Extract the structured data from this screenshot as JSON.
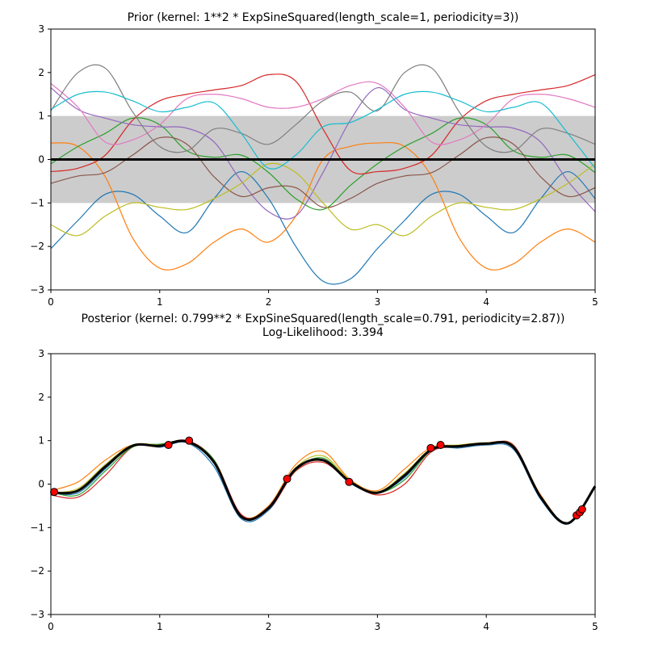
{
  "chart_data": [
    {
      "type": "line",
      "title": "Prior (kernel:  1**2 * ExpSineSquared(length_scale=1, periodicity=3))",
      "xlim": [
        0,
        5
      ],
      "ylim": [
        -3,
        3
      ],
      "xticks": [
        0,
        1,
        2,
        3,
        4,
        5
      ],
      "yticks": [
        {
          "value": -3,
          "label": "−3"
        },
        {
          "value": -2,
          "label": "−2"
        },
        {
          "value": -1,
          "label": "−1"
        },
        0,
        1,
        2,
        3
      ],
      "x": [
        0,
        0.25,
        0.5,
        0.75,
        1,
        1.25,
        1.5,
        1.75,
        2,
        2.25,
        2.5,
        2.75,
        3,
        3.25,
        3.5,
        3.75,
        4,
        4.25,
        4.5,
        4.75,
        5
      ],
      "fill_between": {
        "color": "#cccccc",
        "lower": [
          -1,
          -1,
          -1,
          -1,
          -1,
          -1,
          -1,
          -1,
          -1,
          -1,
          -1,
          -1,
          -1,
          -1,
          -1,
          -1,
          -1,
          -1,
          -1,
          -1,
          -1
        ],
        "upper": [
          1,
          1,
          1,
          1,
          1,
          1,
          1,
          1,
          1,
          1,
          1,
          1,
          1,
          1,
          1,
          1,
          1,
          1,
          1,
          1,
          1
        ]
      },
      "series": [
        {
          "color": "#1f77b4",
          "values": [
            -2.05,
            -1.4,
            -0.8,
            -0.8,
            -1.3,
            -1.68,
            -0.9,
            -0.28,
            -0.9,
            -2.0,
            -2.8,
            -2.75,
            -2.05,
            -1.4,
            -0.8,
            -0.8,
            -1.3,
            -1.68,
            -0.9,
            -0.28,
            -0.9
          ]
        },
        {
          "color": "#ff7f0e",
          "values": [
            0.38,
            0.3,
            -0.4,
            -1.8,
            -2.5,
            -2.4,
            -1.9,
            -1.6,
            -1.9,
            -1.3,
            0.0,
            0.3,
            0.38,
            0.3,
            -0.4,
            -1.8,
            -2.5,
            -2.4,
            -1.9,
            -1.6,
            -1.9
          ]
        },
        {
          "color": "#2ca02c",
          "values": [
            -0.1,
            0.3,
            0.6,
            0.95,
            0.8,
            0.2,
            0.05,
            0.1,
            -0.3,
            -0.9,
            -1.15,
            -0.6,
            -0.1,
            0.3,
            0.6,
            0.95,
            0.8,
            0.2,
            0.05,
            0.1,
            -0.3
          ]
        },
        {
          "color": "#d62728",
          "values": [
            -0.28,
            -0.2,
            0.1,
            0.9,
            1.35,
            1.5,
            1.6,
            1.7,
            1.95,
            1.8,
            0.7,
            -0.25,
            -0.28,
            -0.2,
            0.1,
            0.9,
            1.35,
            1.5,
            1.6,
            1.7,
            1.95
          ]
        },
        {
          "color": "#9467bd",
          "values": [
            1.65,
            1.15,
            0.95,
            0.8,
            0.75,
            0.72,
            0.4,
            -0.5,
            -1.2,
            -1.3,
            -0.3,
            0.9,
            1.65,
            1.15,
            0.95,
            0.8,
            0.75,
            0.72,
            0.4,
            -0.5,
            -1.2
          ]
        },
        {
          "color": "#8c564b",
          "values": [
            -0.55,
            -0.38,
            -0.3,
            0.1,
            0.5,
            0.35,
            -0.4,
            -0.85,
            -0.65,
            -0.65,
            -1.1,
            -0.9,
            -0.55,
            -0.38,
            -0.3,
            0.1,
            0.5,
            0.35,
            -0.4,
            -0.85,
            -0.65
          ]
        },
        {
          "color": "#e377c2",
          "values": [
            1.75,
            1.2,
            0.4,
            0.45,
            0.8,
            1.4,
            1.5,
            1.4,
            1.2,
            1.2,
            1.4,
            1.7,
            1.75,
            1.2,
            0.4,
            0.45,
            0.8,
            1.4,
            1.5,
            1.4,
            1.2
          ]
        },
        {
          "color": "#7f7f7f",
          "values": [
            1.12,
            2.0,
            2.1,
            1.1,
            0.3,
            0.2,
            0.7,
            0.6,
            0.35,
            0.8,
            1.35,
            1.55,
            1.12,
            2.0,
            2.1,
            1.1,
            0.3,
            0.2,
            0.7,
            0.6,
            0.35
          ]
        },
        {
          "color": "#bcbd22",
          "values": [
            -1.5,
            -1.75,
            -1.3,
            -1.0,
            -1.1,
            -1.15,
            -0.9,
            -0.55,
            -0.1,
            -0.3,
            -1.0,
            -1.6,
            -1.5,
            -1.75,
            -1.3,
            -1.0,
            -1.1,
            -1.15,
            -0.9,
            -0.55,
            -0.1
          ]
        },
        {
          "color": "#17becf",
          "values": [
            1.15,
            1.5,
            1.55,
            1.35,
            1.1,
            1.2,
            1.3,
            0.6,
            -0.2,
            0.1,
            0.75,
            0.85,
            1.15,
            1.5,
            1.55,
            1.35,
            1.1,
            1.2,
            1.3,
            0.6,
            -0.2
          ]
        },
        {
          "color": "#000000",
          "linewidth": 3,
          "values": [
            0,
            0,
            0,
            0,
            0,
            0,
            0,
            0,
            0,
            0,
            0,
            0,
            0,
            0,
            0,
            0,
            0,
            0,
            0,
            0,
            0
          ]
        }
      ]
    },
    {
      "type": "line",
      "title": "Posterior (kernel: 0.799**2 * ExpSineSquared(length_scale=0.791, periodicity=2.87))",
      "subtitle": "Log-Likelihood: 3.394",
      "xlim": [
        0,
        5
      ],
      "ylim": [
        -3,
        3
      ],
      "xticks": [
        0,
        1,
        2,
        3,
        4,
        5
      ],
      "yticks": [
        {
          "value": -3,
          "label": "−3"
        },
        {
          "value": -2,
          "label": "−2"
        },
        {
          "value": -1,
          "label": "−1"
        },
        0,
        1,
        2,
        3
      ],
      "x": [
        0,
        0.25,
        0.5,
        0.75,
        1,
        1.25,
        1.5,
        1.75,
        2,
        2.25,
        2.5,
        2.75,
        3,
        3.25,
        3.5,
        3.75,
        4,
        4.25,
        4.5,
        4.75,
        5
      ],
      "series": [
        {
          "color": "#ff7f0e",
          "values": [
            -0.15,
            0.05,
            0.55,
            0.9,
            0.85,
            0.97,
            0.55,
            -0.72,
            -0.5,
            0.45,
            0.75,
            0.1,
            -0.15,
            0.35,
            0.85,
            0.87,
            0.95,
            0.87,
            -0.25,
            -0.9,
            -0.05
          ]
        },
        {
          "color": "#d62728",
          "values": [
            -0.25,
            -0.3,
            0.2,
            0.85,
            0.9,
            1.0,
            0.55,
            -0.7,
            -0.6,
            0.3,
            0.5,
            0.05,
            -0.25,
            0.0,
            0.75,
            0.85,
            0.9,
            0.9,
            -0.3,
            -0.9,
            -0.05
          ]
        },
        {
          "color": "#1f77b4",
          "values": [
            -0.2,
            -0.2,
            0.35,
            0.9,
            0.85,
            0.95,
            0.4,
            -0.8,
            -0.6,
            0.35,
            0.55,
            0.02,
            -0.2,
            0.15,
            0.8,
            0.83,
            0.9,
            0.8,
            -0.35,
            -0.92,
            -0.08
          ]
        },
        {
          "color": "#2ca02c",
          "values": [
            -0.18,
            -0.25,
            0.3,
            0.85,
            0.92,
            0.98,
            0.55,
            -0.75,
            -0.55,
            0.32,
            0.6,
            0.05,
            -0.2,
            0.1,
            0.78,
            0.88,
            0.92,
            0.88,
            -0.28,
            -0.9,
            -0.04
          ]
        },
        {
          "color": "#bcbd22",
          "values": [
            -0.2,
            -0.1,
            0.45,
            0.9,
            0.9,
            0.98,
            0.5,
            -0.75,
            -0.55,
            0.38,
            0.65,
            0.08,
            -0.18,
            0.25,
            0.82,
            0.9,
            0.95,
            0.85,
            -0.3,
            -0.9,
            -0.05
          ]
        },
        {
          "color": "#000000",
          "linewidth": 3,
          "values": [
            -0.2,
            -0.15,
            0.4,
            0.88,
            0.88,
            0.98,
            0.5,
            -0.75,
            -0.55,
            0.35,
            0.55,
            0.05,
            -0.2,
            0.2,
            0.8,
            0.87,
            0.93,
            0.85,
            -0.3,
            -0.9,
            -0.05
          ]
        }
      ],
      "points": {
        "color": "#ff0000",
        "edgecolor": "#000000",
        "x": [
          0.03,
          1.08,
          1.27,
          2.17,
          2.74,
          3.49,
          3.58,
          4.83,
          4.86,
          4.88
        ],
        "y": [
          -0.18,
          0.9,
          1.0,
          0.12,
          0.05,
          0.83,
          0.9,
          -0.72,
          -0.65,
          -0.58
        ]
      }
    }
  ]
}
